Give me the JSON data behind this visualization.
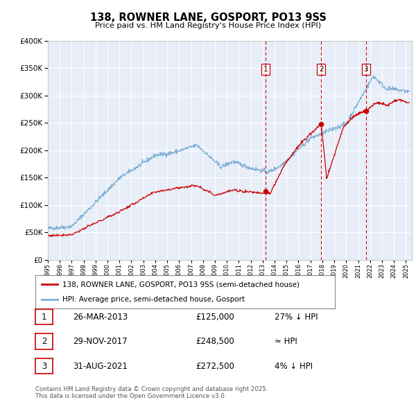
{
  "title": "138, ROWNER LANE, GOSPORT, PO13 9SS",
  "subtitle": "Price paid vs. HM Land Registry's House Price Index (HPI)",
  "red_line_label": "138, ROWNER LANE, GOSPORT, PO13 9SS (semi-detached house)",
  "blue_line_label": "HPI: Average price, semi-detached house, Gosport",
  "footer_line1": "Contains HM Land Registry data © Crown copyright and database right 2025.",
  "footer_line2": "This data is licensed under the Open Government Licence v3.0.",
  "transactions": [
    {
      "num": 1,
      "date": "26-MAR-2013",
      "price": "£125,000",
      "relation": "27% ↓ HPI",
      "year": 2013.23,
      "price_val": 125000
    },
    {
      "num": 2,
      "date": "29-NOV-2017",
      "price": "£248,500",
      "relation": "≈ HPI",
      "year": 2017.91,
      "price_val": 248500
    },
    {
      "num": 3,
      "date": "31-AUG-2021",
      "price": "£272,500",
      "relation": "4% ↓ HPI",
      "year": 2021.66,
      "price_val": 272500
    }
  ],
  "ylim": [
    0,
    400000
  ],
  "xlim_start": 1995,
  "xlim_end": 2025.5,
  "red_color": "#cc0000",
  "blue_color": "#7bafd4",
  "background_color": "#e8eef8",
  "grid_color": "#ffffff",
  "vline_color": "#cc0000",
  "marker_color": "#cc0000",
  "box_border_color": "#cc0000"
}
